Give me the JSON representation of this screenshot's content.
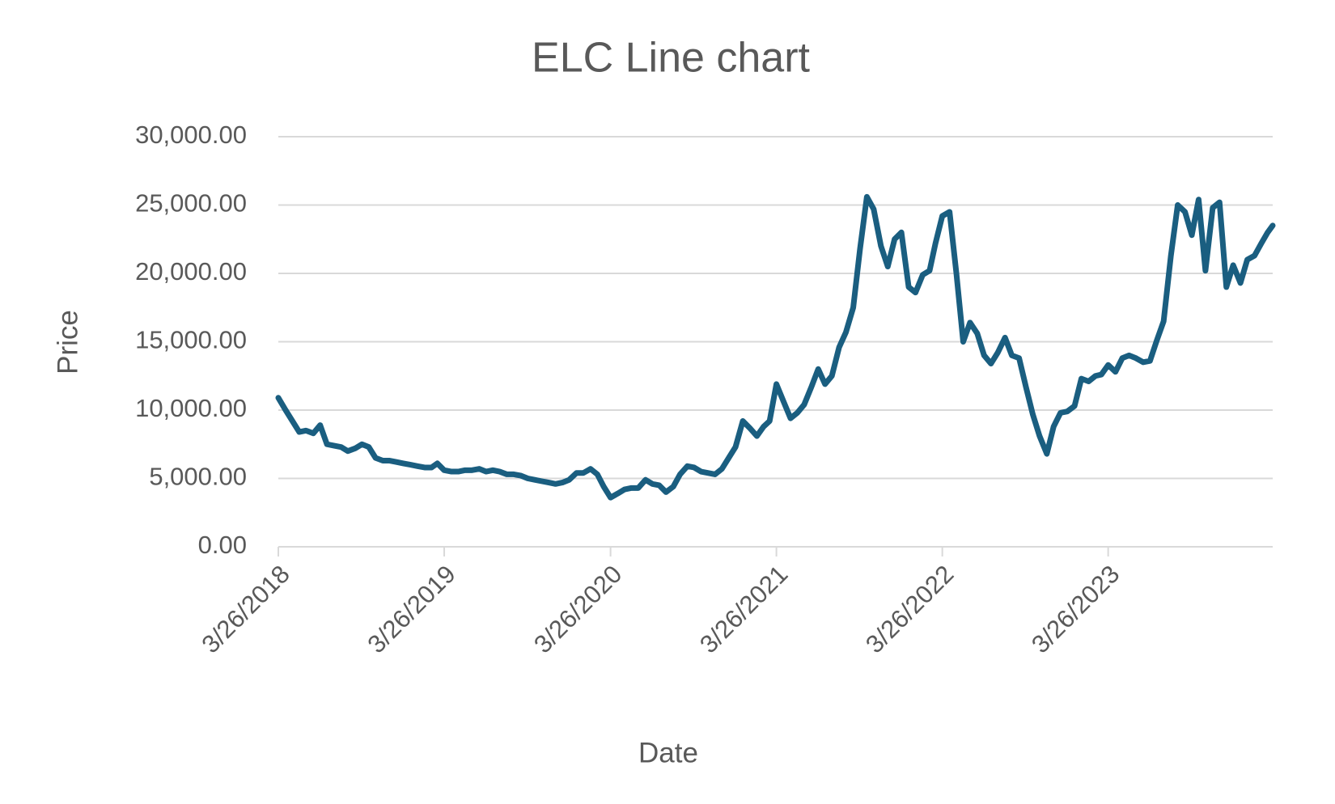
{
  "chart_data": {
    "type": "line",
    "title": "ELC Line chart",
    "x_label": "Date",
    "y_label": "Price",
    "color": "#1a5e80",
    "grid": true,
    "xlim": [
      "2018-03-26",
      "2024-03-22"
    ],
    "xticks": [
      {
        "value": "2018-03-26",
        "label": "3/26/2018"
      },
      {
        "value": "2019-03-26",
        "label": "3/26/2019"
      },
      {
        "value": "2020-03-26",
        "label": "3/26/2020"
      },
      {
        "value": "2021-03-26",
        "label": "3/26/2021"
      },
      {
        "value": "2022-03-26",
        "label": "3/26/2022"
      },
      {
        "value": "2023-03-26",
        "label": "3/26/2023"
      }
    ],
    "ylim": [
      0,
      30000
    ],
    "yticks": [
      {
        "value": 0,
        "label": "0.00"
      },
      {
        "value": 5000,
        "label": "5,000.00"
      },
      {
        "value": 10000,
        "label": "10,000.00"
      },
      {
        "value": 15000,
        "label": "15,000.00"
      },
      {
        "value": 20000,
        "label": "20,000.00"
      },
      {
        "value": 25000,
        "label": "25,000.00"
      },
      {
        "value": 30000,
        "label": "30,000.00"
      }
    ],
    "x": [
      "2018-03-26",
      "2018-04-11",
      "2018-04-26",
      "2018-05-11",
      "2018-05-26",
      "2018-06-11",
      "2018-06-26",
      "2018-07-11",
      "2018-07-26",
      "2018-08-11",
      "2018-08-26",
      "2018-09-11",
      "2018-09-26",
      "2018-10-11",
      "2018-10-26",
      "2018-11-11",
      "2018-11-26",
      "2018-12-11",
      "2018-12-26",
      "2019-01-11",
      "2019-01-26",
      "2019-02-11",
      "2019-02-26",
      "2019-03-11",
      "2019-03-26",
      "2019-04-11",
      "2019-04-26",
      "2019-05-11",
      "2019-05-26",
      "2019-06-11",
      "2019-06-26",
      "2019-07-11",
      "2019-07-26",
      "2019-08-11",
      "2019-08-26",
      "2019-09-11",
      "2019-09-26",
      "2019-10-11",
      "2019-10-26",
      "2019-11-11",
      "2019-11-26",
      "2019-12-11",
      "2019-12-26",
      "2020-01-11",
      "2020-01-26",
      "2020-02-11",
      "2020-02-26",
      "2020-03-11",
      "2020-03-26",
      "2020-04-11",
      "2020-04-26",
      "2020-05-11",
      "2020-05-26",
      "2020-06-11",
      "2020-06-26",
      "2020-07-11",
      "2020-07-26",
      "2020-08-11",
      "2020-08-26",
      "2020-09-11",
      "2020-09-26",
      "2020-10-11",
      "2020-10-26",
      "2020-11-11",
      "2020-11-26",
      "2020-12-11",
      "2020-12-26",
      "2021-01-11",
      "2021-01-26",
      "2021-02-11",
      "2021-02-26",
      "2021-03-11",
      "2021-03-26",
      "2021-04-11",
      "2021-04-26",
      "2021-05-11",
      "2021-05-26",
      "2021-06-11",
      "2021-06-26",
      "2021-07-11",
      "2021-07-26",
      "2021-08-11",
      "2021-08-26",
      "2021-09-11",
      "2021-09-26",
      "2021-10-11",
      "2021-10-26",
      "2021-11-11",
      "2021-11-26",
      "2021-12-11",
      "2021-12-26",
      "2022-01-11",
      "2022-01-26",
      "2022-02-11",
      "2022-02-26",
      "2022-03-11",
      "2022-03-26",
      "2022-04-11",
      "2022-04-26",
      "2022-05-11",
      "2022-05-26",
      "2022-06-11",
      "2022-06-26",
      "2022-07-11",
      "2022-07-26",
      "2022-08-11",
      "2022-08-26",
      "2022-09-11",
      "2022-09-26",
      "2022-10-11",
      "2022-10-26",
      "2022-11-11",
      "2022-11-26",
      "2022-12-11",
      "2022-12-26",
      "2023-01-11",
      "2023-01-26",
      "2023-02-11",
      "2023-02-26",
      "2023-03-11",
      "2023-03-26",
      "2023-04-11",
      "2023-04-26",
      "2023-05-11",
      "2023-05-26",
      "2023-06-11",
      "2023-06-26",
      "2023-07-11",
      "2023-07-26",
      "2023-08-11",
      "2023-08-26",
      "2023-09-11",
      "2023-09-26",
      "2023-10-11",
      "2023-10-26",
      "2023-11-11",
      "2023-11-26",
      "2023-12-11",
      "2023-12-26",
      "2024-01-11",
      "2024-01-26",
      "2024-02-11",
      "2024-02-26",
      "2024-03-11",
      "2024-03-22"
    ],
    "values": [
      10900,
      10000,
      9200,
      8400,
      8500,
      8300,
      8900,
      7500,
      7400,
      7300,
      7000,
      7200,
      7500,
      7300,
      6500,
      6300,
      6300,
      6200,
      6100,
      6000,
      5900,
      5800,
      5800,
      6100,
      5600,
      5500,
      5500,
      5600,
      5600,
      5700,
      5500,
      5600,
      5500,
      5300,
      5300,
      5200,
      5000,
      4900,
      4800,
      4700,
      4600,
      4700,
      4900,
      5400,
      5400,
      5700,
      5300,
      4400,
      3600,
      3900,
      4200,
      4300,
      4300,
      4900,
      4600,
      4500,
      4000,
      4400,
      5300,
      5900,
      5800,
      5500,
      5400,
      5300,
      5700,
      6500,
      7300,
      9200,
      8700,
      8100,
      8800,
      9200,
      11900,
      10600,
      9400,
      9800,
      10400,
      11700,
      13000,
      11900,
      12500,
      14600,
      15700,
      17500,
      21800,
      25600,
      24700,
      22000,
      20500,
      22500,
      23000,
      19000,
      18600,
      19900,
      20200,
      22200,
      24200,
      24500,
      20000,
      15000,
      16400,
      15600,
      14000,
      13400,
      14200,
      15300,
      14000,
      13800,
      11700,
      9700,
      8100,
      6800,
      8800,
      9800,
      9900,
      10300,
      12300,
      12100,
      12500,
      12600,
      13300,
      12800,
      13800,
      14000,
      13800,
      13500,
      13600,
      15100,
      16500,
      21300,
      25000,
      24500,
      22800,
      25400,
      20200,
      24800,
      25200,
      19000,
      20600,
      19300,
      21000,
      21300,
      22200,
      23000,
      23500
    ]
  }
}
